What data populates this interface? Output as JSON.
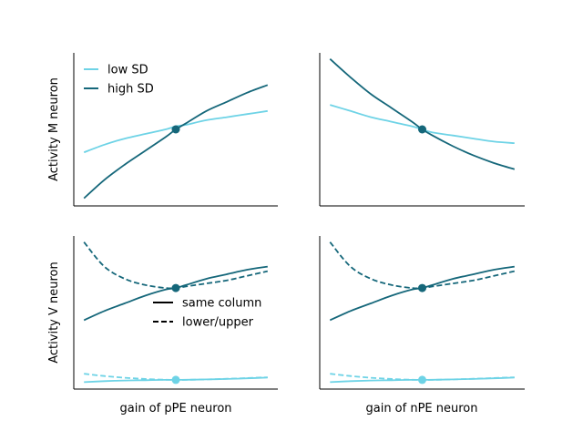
{
  "chart_data": [
    {
      "type": "line",
      "panel": "top-left",
      "xlabel": "",
      "ylabel": "Activity M neuron",
      "xlim": [
        0,
        1
      ],
      "ylim": [
        0,
        1
      ],
      "ticks": false,
      "legend": {
        "location": "top-left",
        "entries": [
          "low SD",
          "high SD"
        ]
      },
      "x": [
        0.05,
        0.15,
        0.25,
        0.35,
        0.45,
        0.5,
        0.55,
        0.65,
        0.75,
        0.85,
        0.95
      ],
      "series": [
        {
          "name": "low SD",
          "color": "#6ed3e6",
          "style": "solid",
          "values": [
            0.35,
            0.4,
            0.44,
            0.47,
            0.5,
            0.52,
            0.53,
            0.56,
            0.58,
            0.6,
            0.62
          ]
        },
        {
          "name": "high SD",
          "color": "#15677a",
          "style": "solid",
          "values": [
            0.05,
            0.17,
            0.27,
            0.36,
            0.45,
            0.5,
            0.54,
            0.62,
            0.68,
            0.74,
            0.79
          ]
        }
      ],
      "markers": [
        {
          "x": 0.5,
          "y": 0.5,
          "color": "#15677a"
        }
      ]
    },
    {
      "type": "line",
      "panel": "top-right",
      "xlabel": "",
      "ylabel": "",
      "xlim": [
        0,
        1
      ],
      "ylim": [
        0,
        1
      ],
      "ticks": false,
      "x": [
        0.05,
        0.15,
        0.25,
        0.35,
        0.45,
        0.5,
        0.55,
        0.65,
        0.75,
        0.85,
        0.95
      ],
      "series": [
        {
          "name": "low SD",
          "color": "#6ed3e6",
          "style": "solid",
          "values": [
            0.66,
            0.62,
            0.58,
            0.55,
            0.52,
            0.5,
            0.48,
            0.46,
            0.44,
            0.42,
            0.41
          ]
        },
        {
          "name": "high SD",
          "color": "#15677a",
          "style": "solid",
          "values": [
            0.96,
            0.84,
            0.73,
            0.64,
            0.55,
            0.5,
            0.46,
            0.39,
            0.33,
            0.28,
            0.24
          ]
        }
      ],
      "markers": [
        {
          "x": 0.5,
          "y": 0.5,
          "color": "#15677a"
        }
      ]
    },
    {
      "type": "line",
      "panel": "bottom-left",
      "xlabel": "gain of pPE neuron",
      "ylabel": "Activity V neuron",
      "xlim": [
        0,
        1
      ],
      "ylim": [
        0,
        1
      ],
      "ticks": false,
      "legend": {
        "location": "center",
        "entries": [
          "same column",
          "lower/upper"
        ]
      },
      "x": [
        0.05,
        0.15,
        0.25,
        0.35,
        0.45,
        0.5,
        0.55,
        0.65,
        0.75,
        0.85,
        0.95
      ],
      "series": [
        {
          "name": "high SD same column",
          "color": "#15677a",
          "style": "solid",
          "values": [
            0.45,
            0.51,
            0.56,
            0.61,
            0.65,
            0.66,
            0.68,
            0.72,
            0.75,
            0.78,
            0.8
          ]
        },
        {
          "name": "high SD lower/upper",
          "color": "#15677a",
          "style": "dashed",
          "values": [
            0.96,
            0.8,
            0.72,
            0.68,
            0.66,
            0.66,
            0.67,
            0.69,
            0.71,
            0.74,
            0.77
          ]
        },
        {
          "name": "low SD same column",
          "color": "#6ed3e6",
          "style": "solid",
          "values": [
            0.045,
            0.052,
            0.056,
            0.058,
            0.06,
            0.06,
            0.061,
            0.063,
            0.066,
            0.07,
            0.075
          ]
        },
        {
          "name": "low SD lower/upper",
          "color": "#6ed3e6",
          "style": "dashed",
          "values": [
            0.1,
            0.085,
            0.074,
            0.066,
            0.061,
            0.06,
            0.06,
            0.063,
            0.067,
            0.072,
            0.077
          ]
        }
      ],
      "markers": [
        {
          "x": 0.5,
          "y": 0.66,
          "color": "#15677a"
        },
        {
          "x": 0.5,
          "y": 0.06,
          "color": "#6ed3e6"
        }
      ]
    },
    {
      "type": "line",
      "panel": "bottom-right",
      "xlabel": "gain of nPE neuron",
      "ylabel": "",
      "xlim": [
        0,
        1
      ],
      "ylim": [
        0,
        1
      ],
      "ticks": false,
      "x": [
        0.05,
        0.15,
        0.25,
        0.35,
        0.45,
        0.5,
        0.55,
        0.65,
        0.75,
        0.85,
        0.95
      ],
      "series": [
        {
          "name": "high SD same column",
          "color": "#15677a",
          "style": "solid",
          "values": [
            0.45,
            0.51,
            0.56,
            0.61,
            0.65,
            0.66,
            0.68,
            0.72,
            0.75,
            0.78,
            0.8
          ]
        },
        {
          "name": "high SD lower/upper",
          "color": "#15677a",
          "style": "dashed",
          "values": [
            0.96,
            0.8,
            0.72,
            0.68,
            0.66,
            0.66,
            0.67,
            0.69,
            0.71,
            0.74,
            0.77
          ]
        },
        {
          "name": "low SD same column",
          "color": "#6ed3e6",
          "style": "solid",
          "values": [
            0.045,
            0.052,
            0.056,
            0.058,
            0.06,
            0.06,
            0.061,
            0.063,
            0.066,
            0.07,
            0.075
          ]
        },
        {
          "name": "low SD lower/upper",
          "color": "#6ed3e6",
          "style": "dashed",
          "values": [
            0.1,
            0.085,
            0.074,
            0.066,
            0.061,
            0.06,
            0.06,
            0.063,
            0.067,
            0.072,
            0.077
          ]
        }
      ],
      "markers": [
        {
          "x": 0.5,
          "y": 0.66,
          "color": "#15677a"
        },
        {
          "x": 0.5,
          "y": 0.06,
          "color": "#6ed3e6"
        }
      ]
    }
  ]
}
